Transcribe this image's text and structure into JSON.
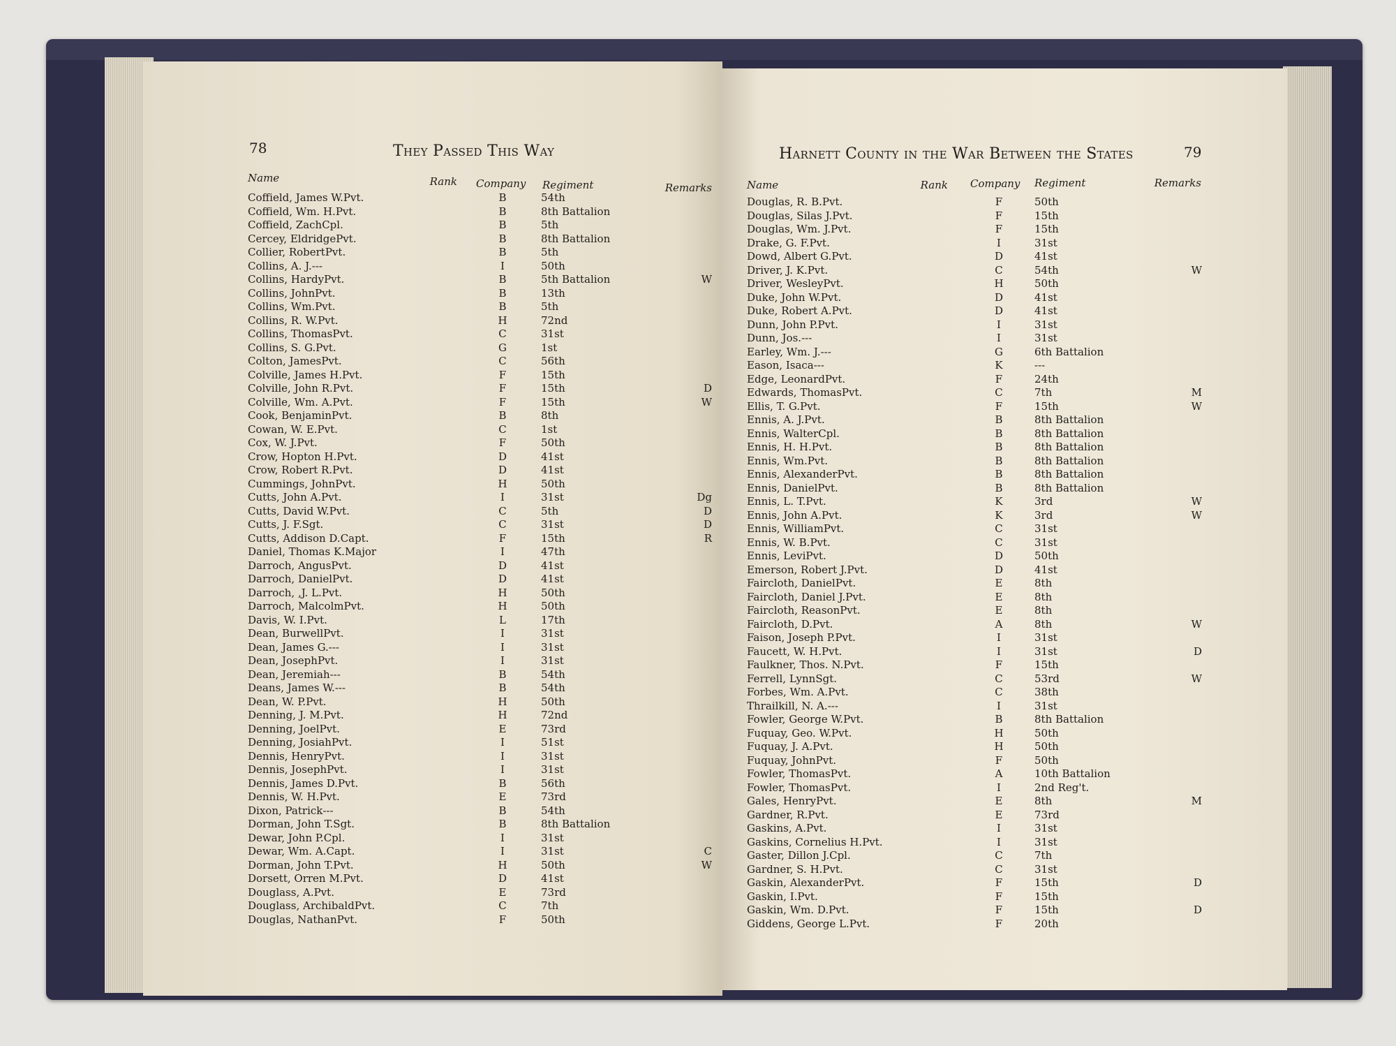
{
  "left_page": {
    "page_number": "78",
    "running_title": "They Passed This Way",
    "headers": {
      "name": "Name",
      "rank": "Rank",
      "company": "Company",
      "regiment": "Regiment",
      "remarks": "Remarks"
    },
    "rows": [
      [
        "Coffield, James W.",
        "Pvt.",
        "B",
        "54th",
        ""
      ],
      [
        "Coffield, Wm. H.",
        "Pvt.",
        "B",
        "8th Battalion",
        ""
      ],
      [
        "Coffield, Zach",
        "Cpl.",
        "B",
        "5th",
        ""
      ],
      [
        "Cercey, Eldridge",
        "Pvt.",
        "B",
        "8th Battalion",
        ""
      ],
      [
        "Collier, Robert",
        "Pvt.",
        "B",
        "5th",
        ""
      ],
      [
        "Collins, A. J.",
        "---",
        "I",
        "50th",
        ""
      ],
      [
        "Collins, Hardy",
        "Pvt.",
        "B",
        "5th Battalion",
        "W"
      ],
      [
        "Collins, John",
        "Pvt.",
        "B",
        "13th",
        ""
      ],
      [
        "Collins, Wm.",
        "Pvt.",
        "B",
        "5th",
        ""
      ],
      [
        "Collins, R. W.",
        "Pvt.",
        "H",
        "72nd",
        ""
      ],
      [
        "Collins, Thomas",
        "Pvt.",
        "C",
        "31st",
        ""
      ],
      [
        "Collins, S. G.",
        "Pvt.",
        "G",
        "1st",
        ""
      ],
      [
        "Colton, James",
        "Pvt.",
        "C",
        "56th",
        ""
      ],
      [
        "Colville, James H.",
        "Pvt.",
        "F",
        "15th",
        ""
      ],
      [
        "Colville, John R.",
        "Pvt.",
        "F",
        "15th",
        "D"
      ],
      [
        "Colville, Wm. A.",
        "Pvt.",
        "F",
        "15th",
        "W"
      ],
      [
        "Cook, Benjamin",
        "Pvt.",
        "B",
        "8th",
        ""
      ],
      [
        "Cowan, W. E.",
        "Pvt.",
        "C",
        "1st",
        ""
      ],
      [
        "Cox, W. J.",
        "Pvt.",
        "F",
        "50th",
        ""
      ],
      [
        "Crow, Hopton H.",
        "Pvt.",
        "D",
        "41st",
        ""
      ],
      [
        "Crow, Robert R.",
        "Pvt.",
        "D",
        "41st",
        ""
      ],
      [
        "Cummings, John",
        "Pvt.",
        "H",
        "50th",
        ""
      ],
      [
        "Cutts, John A.",
        "Pvt.",
        "I",
        "31st",
        "Dg"
      ],
      [
        "Cutts, David W.",
        "Pvt.",
        "C",
        "5th",
        "D"
      ],
      [
        "Cutts, J. F.",
        "Sgt.",
        "C",
        "31st",
        "D"
      ],
      [
        "Cutts, Addison D.",
        "Capt.",
        "F",
        "15th",
        "R"
      ],
      [
        "Daniel, Thomas K.",
        "Major",
        "I",
        "47th",
        ""
      ],
      [
        "Darroch, Angus",
        "Pvt.",
        "D",
        "41st",
        ""
      ],
      [
        "Darroch, Daniel",
        "Pvt.",
        "D",
        "41st",
        ""
      ],
      [
        "Darroch, ,J. L.",
        "Pvt.",
        "H",
        "50th",
        ""
      ],
      [
        "Darroch, Malcolm",
        "Pvt.",
        "H",
        "50th",
        ""
      ],
      [
        "Davis, W. I.",
        "Pvt.",
        "L",
        "17th",
        ""
      ],
      [
        "Dean, Burwell",
        "Pvt.",
        "I",
        "31st",
        ""
      ],
      [
        "Dean, James G.",
        "---",
        "I",
        "31st",
        ""
      ],
      [
        "Dean, Joseph",
        "Pvt.",
        "I",
        "31st",
        ""
      ],
      [
        "Dean, Jeremiah",
        "---",
        "B",
        "54th",
        ""
      ],
      [
        "Deans, James W.",
        "---",
        "B",
        "54th",
        ""
      ],
      [
        "Dean, W. P.",
        "Pvt.",
        "H",
        "50th",
        ""
      ],
      [
        "Denning, J. M.",
        "Pvt.",
        "H",
        "72nd",
        ""
      ],
      [
        "Denning, Joel",
        "Pvt.",
        "E",
        "73rd",
        ""
      ],
      [
        "Denning, Josiah",
        "Pvt.",
        "I",
        "51st",
        ""
      ],
      [
        "Dennis, Henry",
        "Pvt.",
        "I",
        "31st",
        ""
      ],
      [
        "Dennis, Joseph",
        "Pvt.",
        "I",
        "31st",
        ""
      ],
      [
        "Dennis, James D.",
        "Pvt.",
        "B",
        "56th",
        ""
      ],
      [
        "Dennis, W. H.",
        "Pvt.",
        "E",
        "73rd",
        ""
      ],
      [
        "Dixon, Patrick",
        "---",
        "B",
        "54th",
        ""
      ],
      [
        "Dorman, John T.",
        "Sgt.",
        "B",
        "8th Battalion",
        ""
      ],
      [
        "Dewar, John P.",
        "Cpl.",
        "I",
        "31st",
        ""
      ],
      [
        "Dewar, Wm. A.",
        "Capt.",
        "I",
        "31st",
        "C"
      ],
      [
        "Dorman, John T.",
        "Pvt.",
        "H",
        "50th",
        "W"
      ],
      [
        "Dorsett, Orren M.",
        "Pvt.",
        "D",
        "41st",
        ""
      ],
      [
        "Douglass, A.",
        "Pvt.",
        "E",
        "73rd",
        ""
      ],
      [
        "Douglass, Archibald",
        "Pvt.",
        "C",
        "7th",
        ""
      ],
      [
        "Douglas, Nathan",
        "Pvt.",
        "F",
        "50th",
        ""
      ]
    ]
  },
  "right_page": {
    "page_number": "79",
    "running_title": "Harnett County in the War Between the States",
    "headers": {
      "name": "Name",
      "rank": "Rank",
      "company": "Company",
      "regiment": "Regiment",
      "remarks": "Remarks"
    },
    "rows": [
      [
        "Douglas, R. B.",
        "Pvt.",
        "F",
        "50th",
        ""
      ],
      [
        "Douglas, Silas J.",
        "Pvt.",
        "F",
        "15th",
        ""
      ],
      [
        "Douglas, Wm. J.",
        "Pvt.",
        "F",
        "15th",
        ""
      ],
      [
        "Drake, G. F.",
        "Pvt.",
        "I",
        "31st",
        ""
      ],
      [
        "Dowd, Albert G.",
        "Pvt.",
        "D",
        "41st",
        ""
      ],
      [
        "Driver, J. K.",
        "Pvt.",
        "C",
        "54th",
        "W"
      ],
      [
        "Driver, Wesley",
        "Pvt.",
        "H",
        "50th",
        ""
      ],
      [
        "Duke, John W.",
        "Pvt.",
        "D",
        "41st",
        ""
      ],
      [
        "Duke, Robert A.",
        "Pvt.",
        "D",
        "41st",
        ""
      ],
      [
        "Dunn, John P.",
        "Pvt.",
        "I",
        "31st",
        ""
      ],
      [
        "Dunn, Jos.",
        "---",
        "I",
        "31st",
        ""
      ],
      [
        "Earley, Wm. J.",
        "---",
        "G",
        "6th Battalion",
        ""
      ],
      [
        "Eason, Isaca",
        "---",
        "K",
        "---",
        ""
      ],
      [
        "Edge, Leonard",
        "Pvt.",
        "F",
        "24th",
        ""
      ],
      [
        "Edwards, Thomas",
        "Pvt.",
        "C",
        "7th",
        "M"
      ],
      [
        "Ellis, T. G.",
        "Pvt.",
        "F",
        "15th",
        "W"
      ],
      [
        "Ennis, A. J.",
        "Pvt.",
        "B",
        "8th Battalion",
        ""
      ],
      [
        "Ennis, Walter",
        "Cpl.",
        "B",
        "8th Battalion",
        ""
      ],
      [
        "Ennis, H. H.",
        "Pvt.",
        "B",
        "8th Battalion",
        ""
      ],
      [
        "Ennis, Wm.",
        "Pvt.",
        "B",
        "8th Battalion",
        ""
      ],
      [
        "Ennis, Alexander",
        "Pvt.",
        "B",
        "8th Battalion",
        ""
      ],
      [
        "Ennis, Daniel",
        "Pvt.",
        "B",
        "8th Battalion",
        ""
      ],
      [
        "Ennis, L. T.",
        "Pvt.",
        "K",
        "3rd",
        "W"
      ],
      [
        "Ennis, John A.",
        "Pvt.",
        "K",
        "3rd",
        "W"
      ],
      [
        "Ennis, William",
        "Pvt.",
        "C",
        "31st",
        ""
      ],
      [
        "Ennis, W. B.",
        "Pvt.",
        "C",
        "31st",
        ""
      ],
      [
        "Ennis, Levi",
        "Pvt.",
        "D",
        "50th",
        ""
      ],
      [
        "Emerson, Robert J.",
        "Pvt.",
        "D",
        "41st",
        ""
      ],
      [
        "Faircloth, Daniel",
        "Pvt.",
        "E",
        "8th",
        ""
      ],
      [
        "Faircloth, Daniel J.",
        "Pvt.",
        "E",
        "8th",
        ""
      ],
      [
        "Faircloth, Reason",
        "Pvt.",
        "E",
        "8th",
        ""
      ],
      [
        "Faircloth, D.",
        "Pvt.",
        "A",
        "8th",
        "W"
      ],
      [
        "Faison, Joseph P.",
        "Pvt.",
        "I",
        "31st",
        ""
      ],
      [
        "Faucett, W. H.",
        "Pvt.",
        "I",
        "31st",
        "D"
      ],
      [
        "Faulkner, Thos. N.",
        "Pvt.",
        "F",
        "15th",
        ""
      ],
      [
        "Ferrell, Lynn",
        "Sgt.",
        "C",
        "53rd",
        "W"
      ],
      [
        "Forbes, Wm. A.",
        "Pvt.",
        "C",
        "38th",
        ""
      ],
      [
        "Thrailkill, N. A.",
        "---",
        "I",
        "31st",
        ""
      ],
      [
        "Fowler, George W.",
        "Pvt.",
        "B",
        "8th Battalion",
        ""
      ],
      [
        "Fuquay, Geo. W.",
        "Pvt.",
        "H",
        "50th",
        ""
      ],
      [
        "Fuquay, J. A.",
        "Pvt.",
        "H",
        "50th",
        ""
      ],
      [
        "Fuquay, John",
        "Pvt.",
        "F",
        "50th",
        ""
      ],
      [
        "Fowler, Thomas",
        "Pvt.",
        "A",
        "10th Battalion",
        ""
      ],
      [
        "Fowler, Thomas",
        "Pvt.",
        "I",
        "2nd Reg't.",
        ""
      ],
      [
        "Gales, Henry",
        "Pvt.",
        "E",
        "8th",
        "M"
      ],
      [
        "Gardner, R.",
        "Pvt.",
        "E",
        "73rd",
        ""
      ],
      [
        "Gaskins, A.",
        "Pvt.",
        "I",
        "31st",
        ""
      ],
      [
        "Gaskins, Cornelius H.",
        "Pvt.",
        "I",
        "31st",
        ""
      ],
      [
        "Gaster, Dillon J.",
        "Cpl.",
        "C",
        "7th",
        ""
      ],
      [
        "Gardner, S. H.",
        "Pvt.",
        "C",
        "31st",
        ""
      ],
      [
        "Gaskin, Alexander",
        "Pvt.",
        "F",
        "15th",
        "D"
      ],
      [
        "Gaskin, I.",
        "Pvt.",
        "F",
        "15th",
        ""
      ],
      [
        "Gaskin, Wm. D.",
        "Pvt.",
        "F",
        "15th",
        "D"
      ],
      [
        "Giddens, George L.",
        "Pvt.",
        "F",
        "20th",
        ""
      ]
    ]
  }
}
